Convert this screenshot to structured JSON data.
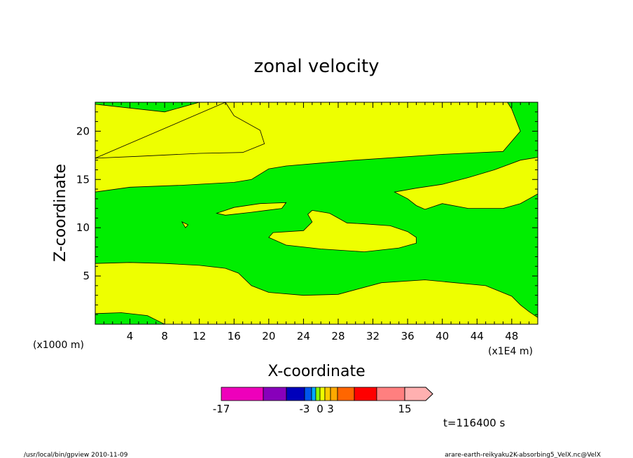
{
  "chart_data": {
    "type": "heatmap",
    "title": "zonal velocity",
    "xlabel": "X-coordinate",
    "ylabel": "Z-coordinate",
    "x_unit_note": "(x1E4 m)",
    "y_unit_note": "(x1000 m)",
    "xlim": [
      0,
      51
    ],
    "ylim": [
      0,
      23
    ],
    "x_ticks": [
      4,
      8,
      12,
      16,
      20,
      24,
      28,
      32,
      36,
      40,
      44,
      48
    ],
    "y_ticks": [
      5,
      10,
      15,
      20
    ],
    "x_tick_labels": [
      "4",
      "8",
      "12",
      "16",
      "20",
      "24",
      "28",
      "32",
      "36",
      "40",
      "44",
      "48"
    ],
    "y_tick_labels": [
      "5",
      "10",
      "15",
      "20"
    ],
    "field_colors": {
      "background_band": "#00ee00",
      "positive_band": "#eeff00"
    },
    "yellow_regions": [
      [
        [
          0,
          1.1
        ],
        [
          3,
          1.2
        ],
        [
          6,
          0.9
        ],
        [
          8,
          0
        ],
        [
          51,
          0
        ],
        [
          51,
          0.7
        ],
        [
          50,
          1.3
        ],
        [
          49,
          2
        ],
        [
          48,
          2.9
        ],
        [
          45,
          4
        ],
        [
          38,
          4.6
        ],
        [
          33,
          4.3
        ],
        [
          28,
          3.1
        ],
        [
          24,
          3
        ],
        [
          20,
          3.3
        ],
        [
          18,
          4
        ],
        [
          16.5,
          5.3
        ],
        [
          15,
          5.8
        ],
        [
          12,
          6.1
        ],
        [
          8,
          6.3
        ],
        [
          4,
          6.4
        ],
        [
          0,
          6.3
        ]
      ],
      [
        [
          0,
          13.7
        ],
        [
          4,
          14.2
        ],
        [
          10,
          14.4
        ],
        [
          16,
          14.7
        ],
        [
          18,
          15
        ],
        [
          20,
          16.1
        ],
        [
          22,
          16.4
        ],
        [
          26,
          16.7
        ],
        [
          30,
          17
        ],
        [
          40,
          17.6
        ],
        [
          47,
          17.9
        ],
        [
          49,
          20
        ],
        [
          48,
          22.3
        ],
        [
          47.5,
          23
        ],
        [
          20,
          23
        ],
        [
          12,
          23
        ],
        [
          8,
          22
        ],
        [
          0,
          22.8
        ]
      ],
      [
        [
          25,
          11.8
        ],
        [
          27,
          11.5
        ],
        [
          28,
          11
        ],
        [
          29,
          10.5
        ],
        [
          31,
          10.4
        ],
        [
          34,
          10.2
        ],
        [
          36,
          9.6
        ],
        [
          37,
          9
        ],
        [
          37,
          8.4
        ],
        [
          35,
          7.9
        ],
        [
          31,
          7.5
        ],
        [
          26,
          7.8
        ],
        [
          22,
          8.2
        ],
        [
          20,
          9
        ],
        [
          20.5,
          9.5
        ],
        [
          24,
          9.7
        ],
        [
          25,
          10.6
        ],
        [
          24.5,
          11.4
        ]
      ],
      [
        [
          34.5,
          13.7
        ],
        [
          37,
          14.1
        ],
        [
          40,
          14.5
        ],
        [
          43,
          15.2
        ],
        [
          46,
          16
        ],
        [
          49,
          17
        ],
        [
          51,
          17.3
        ],
        [
          51,
          13.5
        ],
        [
          49,
          12.5
        ],
        [
          47,
          12
        ],
        [
          43,
          12
        ],
        [
          40,
          12.5
        ],
        [
          38,
          11.9
        ],
        [
          37,
          12.3
        ],
        [
          36,
          13
        ]
      ],
      [
        [
          14,
          11.5
        ],
        [
          16,
          12.1
        ],
        [
          19,
          12.5
        ],
        [
          22,
          12.6
        ],
        [
          21.5,
          12
        ],
        [
          18,
          11.6
        ],
        [
          15,
          11.3
        ]
      ],
      [
        [
          10,
          10.6
        ],
        [
          10.7,
          10.3
        ],
        [
          10.4,
          10
        ]
      ],
      [
        [
          15,
          23
        ],
        [
          16,
          21.6
        ],
        [
          19,
          20.1
        ],
        [
          19.5,
          18.7
        ],
        [
          17,
          17.8
        ],
        [
          12,
          17.7
        ],
        [
          5,
          17.4
        ],
        [
          0,
          17.2
        ]
      ]
    ],
    "colorbar": {
      "colors": [
        "#ee00bb",
        "#8800bb",
        "#0000bb",
        "#0055ee",
        "#00aaff",
        "#88ff00",
        "#eeff00",
        "#ffcc00",
        "#ffaa00",
        "#ff6600",
        "#ff0000",
        "#ff7f7f",
        "#ffb0b0"
      ],
      "widths": [
        60,
        33,
        26,
        10,
        6,
        6,
        7,
        8,
        10,
        24,
        32,
        40,
        40
      ],
      "labels": [
        {
          "text": "-17",
          "segment_index": 0
        },
        {
          "text": "-3",
          "segment_index": 3
        },
        {
          "text": "0",
          "segment_index": 6
        },
        {
          "text": "3",
          "segment_index": 8
        },
        {
          "text": "15",
          "segment_index": 12
        }
      ]
    }
  },
  "time_label": "t=116400 s",
  "footer": {
    "left": "/usr/local/bin/gpview  2010-11-09",
    "right": "arare-earth-reikyaku2K-absorbing5_VelX.nc@VelX"
  }
}
